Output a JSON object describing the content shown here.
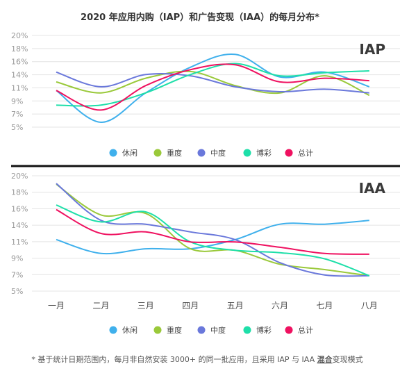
{
  "title": "2020 年应用内购（IAP）和广告变现（IAA）的每月分布*",
  "footnote": {
    "before": "* 基于统计日期范围内，每月非自然安装 3000+ 的同一批应用，且采用 IAP 与 IAA ",
    "bold": "混合",
    "after": "变现模式"
  },
  "colors": {
    "休闲": "#3fb0ec",
    "重度": "#9ac93a",
    "中度": "#6a78db",
    "博彩": "#1edfa9",
    "总计": "#ef1160"
  },
  "chart_data": [
    {
      "type": "line",
      "label": "IAP",
      "categories": [
        "一月",
        "二月",
        "三月",
        "四月",
        "五月",
        "六月",
        "七月",
        "八月"
      ],
      "y_tick_labels": [
        "20%",
        "18%",
        "16%",
        "14%",
        "11%",
        "9%",
        "7%",
        "5%"
      ],
      "ylim": [
        5,
        20
      ],
      "grid": true,
      "legend": "bottom",
      "series": [
        {
          "name": "休闲",
          "values": [
            11.0,
            5.8,
            10.6,
            14.8,
            16.9,
            13.2,
            14.0,
            11.6
          ]
        },
        {
          "name": "重度",
          "values": [
            12.4,
            10.6,
            13.0,
            14.1,
            11.8,
            10.6,
            13.4,
            10.2
          ]
        },
        {
          "name": "中度",
          "values": [
            14.0,
            11.6,
            13.6,
            13.4,
            11.6,
            10.8,
            11.2,
            10.6
          ]
        },
        {
          "name": "博彩",
          "values": [
            8.6,
            8.6,
            10.6,
            13.6,
            15.4,
            13.4,
            13.9,
            14.2
          ]
        },
        {
          "name": "总计",
          "values": [
            11.0,
            7.8,
            11.8,
            14.4,
            15.2,
            12.4,
            13.0,
            12.6
          ]
        }
      ]
    },
    {
      "type": "line",
      "label": "IAA",
      "categories": [
        "一月",
        "二月",
        "三月",
        "四月",
        "五月",
        "六月",
        "七月",
        "八月"
      ],
      "y_tick_labels": [
        "20%",
        "18%",
        "16%",
        "14%",
        "11%",
        "9%",
        "7%",
        "5%"
      ],
      "ylim": [
        5,
        20
      ],
      "grid": true,
      "legend": "bottom",
      "series": [
        {
          "name": "休闲",
          "values": [
            11.7,
            9.9,
            10.5,
            10.5,
            11.7,
            13.7,
            13.7,
            14.2
          ]
        },
        {
          "name": "重度",
          "values": [
            18.9,
            14.9,
            15.1,
            10.5,
            10.3,
            8.5,
            7.8,
            7.0
          ]
        },
        {
          "name": "中度",
          "values": [
            19.0,
            14.2,
            13.7,
            12.7,
            11.7,
            8.7,
            7.1,
            7.0
          ]
        },
        {
          "name": "博彩",
          "values": [
            16.2,
            14.0,
            15.3,
            11.4,
            10.3,
            10.0,
            9.2,
            7.0
          ]
        },
        {
          "name": "总计",
          "values": [
            15.6,
            12.5,
            12.7,
            11.4,
            11.4,
            10.7,
            9.9,
            9.8
          ]
        }
      ]
    }
  ]
}
